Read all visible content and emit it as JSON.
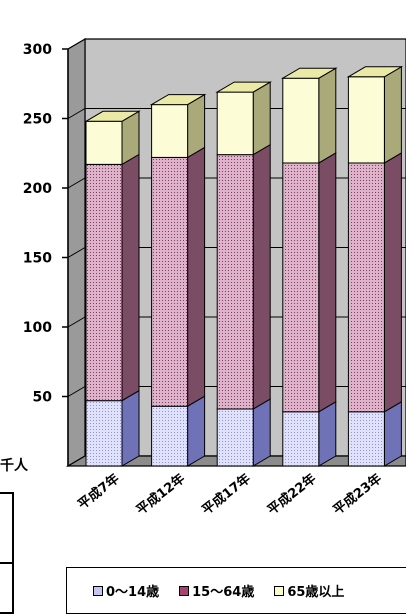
{
  "chart_data": {
    "type": "bar",
    "stacked": true,
    "three_d": true,
    "unit_label": "千人",
    "categories": [
      "平成7年",
      "平成12年",
      "平成17年",
      "平成22年",
      "平成23年"
    ],
    "series": [
      {
        "name": "0〜14歳",
        "values": [
          47,
          43,
          41,
          39,
          39
        ],
        "color": "#c4c6f0"
      },
      {
        "name": "15〜64歳",
        "values": [
          170,
          179,
          183,
          179,
          179
        ],
        "color": "#c88dab"
      },
      {
        "name": "65歳以上",
        "values": [
          31,
          38,
          45,
          61,
          62
        ],
        "color": "#fbfbc8"
      }
    ],
    "ylim": [
      0,
      300
    ],
    "yticks": [
      50,
      100,
      150,
      200,
      250,
      300
    ],
    "ytick_labels": [
      "50",
      "100",
      "150",
      "200",
      "250",
      "300"
    ],
    "grid": true,
    "legend_position": "bottom"
  }
}
